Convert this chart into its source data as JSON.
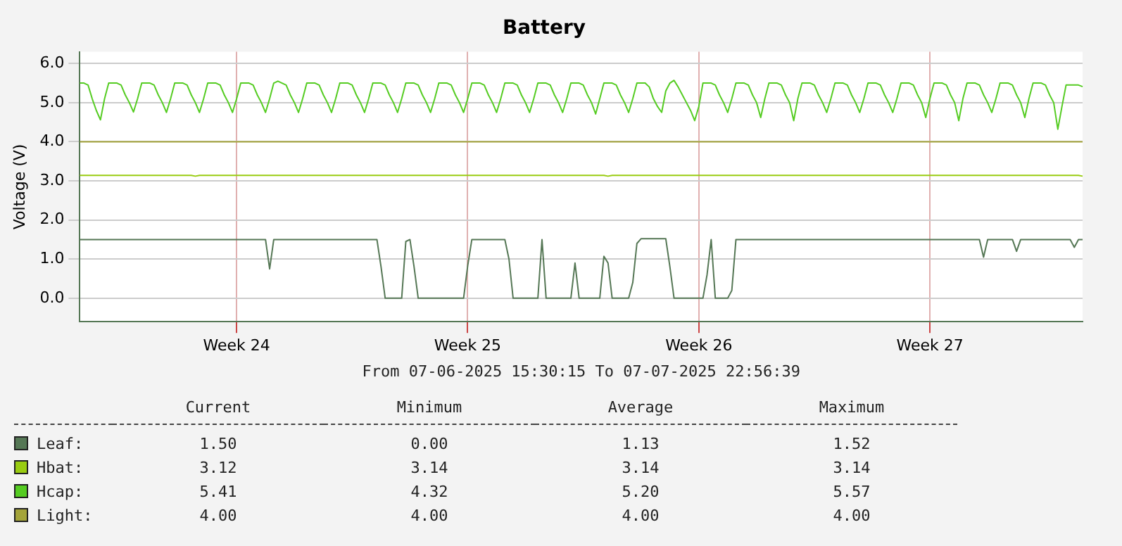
{
  "chart_data": {
    "type": "line",
    "title": "Battery",
    "ylabel": "Voltage (V)",
    "xlabel": "From 07-06-2025 15:30:15 To 07-07-2025 22:56:39",
    "categories": [
      null,
      null,
      null,
      null,
      null,
      null,
      null,
      null,
      null,
      null,
      null,
      null,
      null,
      null,
      null,
      null,
      null,
      null,
      null,
      null,
      null,
      null,
      null,
      null,
      null,
      null,
      null,
      null,
      null,
      null,
      null,
      null,
      null,
      null,
      null,
      null,
      null,
      null,
      "Week 24",
      null,
      null,
      null,
      null,
      null,
      null,
      null,
      null,
      null,
      null,
      null,
      null,
      null,
      null,
      null,
      null,
      null,
      null,
      null,
      null,
      null,
      null,
      null,
      null,
      null,
      null,
      null,
      null,
      null,
      null,
      null,
      null,
      null,
      null,
      null,
      null,
      null,
      null,
      null,
      null,
      null,
      null,
      null,
      null,
      null,
      null,
      null,
      null,
      null,
      null,
      null,
      null,
      null,
      null,
      null,
      "Week 25",
      null,
      null,
      null,
      null,
      null,
      null,
      null,
      null,
      null,
      null,
      null,
      null,
      null,
      null,
      null,
      null,
      null,
      null,
      null,
      null,
      null,
      null,
      null,
      null,
      null,
      null,
      null,
      null,
      null,
      null,
      null,
      null,
      null,
      null,
      null,
      null,
      null,
      null,
      null,
      null,
      null,
      null,
      null,
      null,
      null,
      null,
      null,
      null,
      null,
      null,
      null,
      null,
      null,
      null,
      null,
      "Week 26",
      null,
      null,
      null,
      null,
      null,
      null,
      null,
      null,
      null,
      null,
      null,
      null,
      null,
      null,
      null,
      null,
      null,
      null,
      null,
      null,
      null,
      null,
      null,
      null,
      null,
      null,
      null,
      null,
      null,
      null,
      null,
      null,
      null,
      null,
      null,
      null,
      null,
      null,
      null,
      null,
      null,
      null,
      null,
      null,
      null,
      null,
      null,
      null,
      null,
      null,
      null,
      null,
      null,
      null,
      null,
      "Week 27",
      null,
      null,
      null,
      null,
      null,
      null,
      null,
      null,
      null,
      null,
      null,
      null,
      null,
      null,
      null,
      null,
      null,
      null,
      null,
      null,
      null,
      null,
      null,
      null,
      null,
      null,
      null,
      null,
      null,
      null,
      null,
      null,
      null,
      null,
      null,
      null,
      null
    ],
    "ylim": [
      -0.6,
      6.3
    ],
    "yticks": [
      {
        "value": 0,
        "label": "0.0"
      },
      {
        "value": 1,
        "label": "1.0"
      },
      {
        "value": 2,
        "label": "2.0"
      },
      {
        "value": 3,
        "label": "3.0"
      },
      {
        "value": 4,
        "label": "4.0"
      },
      {
        "value": 5,
        "label": "5.0"
      },
      {
        "value": 6,
        "label": "6.0"
      }
    ],
    "grid": true,
    "legend": "bottom",
    "marker": "none",
    "line_style": "solid",
    "series": [
      {
        "name": "Leaf:",
        "color": "#557755",
        "values": [
          1.5,
          1.5,
          1.5,
          1.5,
          1.5,
          1.5,
          1.5,
          1.5,
          1.5,
          1.5,
          1.5,
          1.5,
          1.5,
          1.5,
          1.5,
          1.5,
          1.5,
          1.5,
          1.5,
          1.5,
          1.5,
          1.5,
          1.5,
          1.5,
          1.5,
          1.5,
          1.5,
          1.5,
          1.5,
          1.5,
          1.5,
          1.5,
          1.5,
          1.5,
          1.5,
          1.5,
          1.5,
          1.5,
          1.5,
          1.5,
          1.5,
          1.5,
          1.5,
          1.5,
          1.5,
          1.5,
          0.75,
          1.5,
          1.5,
          1.5,
          1.5,
          1.5,
          1.5,
          1.5,
          1.5,
          1.5,
          1.5,
          1.5,
          1.5,
          1.5,
          1.5,
          1.5,
          1.5,
          1.5,
          1.5,
          1.5,
          1.5,
          1.5,
          1.5,
          1.5,
          1.5,
          1.5,
          1.5,
          0.8,
          0,
          0,
          0,
          0,
          0,
          1.45,
          1.5,
          0.8,
          0,
          0,
          0,
          0,
          0,
          0,
          0,
          0,
          0,
          0,
          0,
          0,
          0.83,
          1.5,
          1.5,
          1.5,
          1.5,
          1.5,
          1.5,
          1.5,
          1.5,
          1.5,
          1.0,
          0,
          0,
          0,
          0,
          0,
          0,
          0,
          1.5,
          0,
          0,
          0,
          0,
          0,
          0,
          0,
          0.9,
          0,
          0,
          0,
          0,
          0,
          0,
          1.07,
          0.9,
          0,
          0,
          0,
          0,
          0,
          0.4,
          1.4,
          1.52,
          1.52,
          1.52,
          1.52,
          1.52,
          1.52,
          1.52,
          0.8,
          0,
          0,
          0,
          0,
          0,
          0,
          0,
          0,
          0.6,
          1.5,
          0,
          0,
          0,
          0,
          0.2,
          1.5,
          1.5,
          1.5,
          1.5,
          1.5,
          1.5,
          1.5,
          1.5,
          1.5,
          1.5,
          1.5,
          1.5,
          1.5,
          1.5,
          1.5,
          1.5,
          1.5,
          1.5,
          1.5,
          1.5,
          1.5,
          1.5,
          1.5,
          1.5,
          1.5,
          1.5,
          1.5,
          1.5,
          1.5,
          1.5,
          1.5,
          1.5,
          1.5,
          1.5,
          1.5,
          1.5,
          1.5,
          1.5,
          1.5,
          1.5,
          1.5,
          1.5,
          1.5,
          1.5,
          1.5,
          1.5,
          1.5,
          1.5,
          1.5,
          1.5,
          1.5,
          1.5,
          1.5,
          1.5,
          1.5,
          1.5,
          1.5,
          1.5,
          1.5,
          1.5,
          1.05,
          1.5,
          1.5,
          1.5,
          1.5,
          1.5,
          1.5,
          1.5,
          1.2,
          1.5,
          1.5,
          1.5,
          1.5,
          1.5,
          1.5,
          1.5,
          1.5,
          1.5,
          1.5,
          1.5,
          1.5,
          1.5,
          1.3,
          1.5,
          1.5
        ]
      },
      {
        "name": "Hbat:",
        "color": "#99cc11",
        "values": [
          3.14,
          3.14,
          3.14,
          3.14,
          3.14,
          3.14,
          3.14,
          3.14,
          3.14,
          3.14,
          3.14,
          3.14,
          3.14,
          3.14,
          3.14,
          3.14,
          3.14,
          3.14,
          3.14,
          3.14,
          3.14,
          3.14,
          3.14,
          3.14,
          3.14,
          3.14,
          3.14,
          3.14,
          3.12,
          3.14,
          3.14,
          3.14,
          3.14,
          3.14,
          3.14,
          3.14,
          3.14,
          3.14,
          3.14,
          3.14,
          3.14,
          3.14,
          3.14,
          3.14,
          3.14,
          3.14,
          3.14,
          3.14,
          3.14,
          3.14,
          3.14,
          3.14,
          3.14,
          3.14,
          3.14,
          3.14,
          3.14,
          3.14,
          3.14,
          3.14,
          3.14,
          3.14,
          3.14,
          3.14,
          3.14,
          3.14,
          3.14,
          3.14,
          3.14,
          3.14,
          3.14,
          3.14,
          3.14,
          3.14,
          3.14,
          3.14,
          3.14,
          3.14,
          3.14,
          3.14,
          3.14,
          3.14,
          3.14,
          3.14,
          3.14,
          3.14,
          3.14,
          3.14,
          3.14,
          3.14,
          3.14,
          3.14,
          3.14,
          3.14,
          3.14,
          3.14,
          3.14,
          3.14,
          3.14,
          3.14,
          3.14,
          3.14,
          3.14,
          3.14,
          3.14,
          3.14,
          3.14,
          3.14,
          3.14,
          3.14,
          3.14,
          3.14,
          3.14,
          3.14,
          3.14,
          3.14,
          3.14,
          3.14,
          3.14,
          3.14,
          3.14,
          3.14,
          3.14,
          3.14,
          3.14,
          3.14,
          3.14,
          3.14,
          3.12,
          3.14,
          3.14,
          3.14,
          3.14,
          3.14,
          3.14,
          3.14,
          3.14,
          3.14,
          3.14,
          3.14,
          3.14,
          3.14,
          3.14,
          3.14,
          3.14,
          3.14,
          3.14,
          3.14,
          3.14,
          3.14,
          3.14,
          3.14,
          3.14,
          3.14,
          3.14,
          3.14,
          3.14,
          3.14,
          3.14,
          3.14,
          3.14,
          3.14,
          3.14,
          3.14,
          3.14,
          3.14,
          3.14,
          3.14,
          3.14,
          3.14,
          3.14,
          3.14,
          3.14,
          3.14,
          3.14,
          3.14,
          3.14,
          3.14,
          3.14,
          3.14,
          3.14,
          3.14,
          3.14,
          3.14,
          3.14,
          3.14,
          3.14,
          3.14,
          3.14,
          3.14,
          3.14,
          3.14,
          3.14,
          3.14,
          3.14,
          3.14,
          3.14,
          3.14,
          3.14,
          3.14,
          3.14,
          3.14,
          3.14,
          3.14,
          3.14,
          3.14,
          3.14,
          3.14,
          3.14,
          3.14,
          3.14,
          3.14,
          3.14,
          3.14,
          3.14,
          3.14,
          3.14,
          3.14,
          3.14,
          3.14,
          3.14,
          3.14,
          3.14,
          3.14,
          3.14,
          3.14,
          3.14,
          3.14,
          3.14,
          3.14,
          3.14,
          3.14,
          3.14,
          3.14,
          3.14,
          3.14,
          3.14,
          3.14,
          3.14,
          3.14,
          3.14,
          3.14,
          3.14,
          3.12
        ]
      },
      {
        "name": "Hcap:",
        "color": "#55cc22",
        "values": [
          5.5,
          5.5,
          5.45,
          5.1,
          4.8,
          4.56,
          5.1,
          5.5,
          5.5,
          5.5,
          5.45,
          5.2,
          5.0,
          4.76,
          5.1,
          5.5,
          5.5,
          5.5,
          5.45,
          5.2,
          5.0,
          4.75,
          5.1,
          5.5,
          5.5,
          5.5,
          5.45,
          5.2,
          5.0,
          4.75,
          5.1,
          5.5,
          5.5,
          5.5,
          5.45,
          5.2,
          5.0,
          4.75,
          5.1,
          5.5,
          5.5,
          5.5,
          5.45,
          5.2,
          5.0,
          4.75,
          5.1,
          5.5,
          5.55,
          5.5,
          5.45,
          5.2,
          5.0,
          4.75,
          5.1,
          5.5,
          5.5,
          5.5,
          5.45,
          5.2,
          5.0,
          4.75,
          5.1,
          5.5,
          5.5,
          5.5,
          5.45,
          5.2,
          5.0,
          4.75,
          5.1,
          5.5,
          5.5,
          5.5,
          5.45,
          5.2,
          5.0,
          4.75,
          5.1,
          5.5,
          5.5,
          5.5,
          5.45,
          5.2,
          5.0,
          4.75,
          5.1,
          5.5,
          5.5,
          5.5,
          5.45,
          5.2,
          5.0,
          4.75,
          5.1,
          5.5,
          5.5,
          5.5,
          5.45,
          5.2,
          5.0,
          4.75,
          5.1,
          5.5,
          5.5,
          5.5,
          5.45,
          5.2,
          5.0,
          4.75,
          5.1,
          5.5,
          5.5,
          5.5,
          5.45,
          5.2,
          5.0,
          4.75,
          5.1,
          5.5,
          5.5,
          5.5,
          5.45,
          5.2,
          5.0,
          4.71,
          5.1,
          5.5,
          5.5,
          5.5,
          5.45,
          5.2,
          5.0,
          4.75,
          5.1,
          5.5,
          5.5,
          5.5,
          5.4,
          5.1,
          4.9,
          4.75,
          5.3,
          5.5,
          5.57,
          5.4,
          5.2,
          5.0,
          4.8,
          4.54,
          4.9,
          5.5,
          5.5,
          5.5,
          5.45,
          5.2,
          5.0,
          4.75,
          5.1,
          5.5,
          5.5,
          5.5,
          5.45,
          5.2,
          5.0,
          4.62,
          5.1,
          5.5,
          5.5,
          5.5,
          5.45,
          5.2,
          5.0,
          4.54,
          5.1,
          5.5,
          5.5,
          5.5,
          5.45,
          5.2,
          5.0,
          4.75,
          5.1,
          5.5,
          5.5,
          5.5,
          5.45,
          5.2,
          5.0,
          4.75,
          5.1,
          5.5,
          5.5,
          5.5,
          5.45,
          5.2,
          5.0,
          4.75,
          5.1,
          5.5,
          5.5,
          5.5,
          5.45,
          5.2,
          5.0,
          4.62,
          5.1,
          5.5,
          5.5,
          5.5,
          5.45,
          5.2,
          5.0,
          4.54,
          5.1,
          5.5,
          5.5,
          5.5,
          5.45,
          5.2,
          5.0,
          4.75,
          5.1,
          5.5,
          5.5,
          5.5,
          5.45,
          5.2,
          5.0,
          4.62,
          5.1,
          5.5,
          5.5,
          5.5,
          5.45,
          5.2,
          5.0,
          4.32,
          4.9,
          5.45,
          5.45,
          5.45,
          5.45,
          5.41
        ]
      },
      {
        "name": "Light:",
        "color": "#a4a43a",
        "values": [
          4.0,
          4.0,
          4.0,
          4.0,
          4.0,
          4.0,
          4.0,
          4.0,
          4.0,
          4.0,
          4.0,
          4.0,
          4.0,
          4.0,
          4.0,
          4.0,
          4.0,
          4.0,
          4.0,
          4.0,
          4.0,
          4.0,
          4.0,
          4.0,
          4.0,
          4.0,
          4.0,
          4.0,
          4.0,
          4.0,
          4.0,
          4.0,
          4.0,
          4.0,
          4.0,
          4.0,
          4.0,
          4.0,
          4.0,
          4.0,
          4.0,
          4.0,
          4.0,
          4.0,
          4.0,
          4.0,
          4.0,
          4.0,
          4.0,
          4.0,
          4.0,
          4.0,
          4.0,
          4.0,
          4.0,
          4.0,
          4.0,
          4.0,
          4.0,
          4.0,
          4.0,
          4.0,
          4.0,
          4.0,
          4.0,
          4.0,
          4.0,
          4.0,
          4.0,
          4.0,
          4.0,
          4.0,
          4.0,
          4.0,
          4.0,
          4.0,
          4.0,
          4.0,
          4.0,
          4.0,
          4.0,
          4.0,
          4.0,
          4.0,
          4.0,
          4.0,
          4.0,
          4.0,
          4.0,
          4.0,
          4.0,
          4.0,
          4.0,
          4.0,
          4.0,
          4.0,
          4.0,
          4.0,
          4.0,
          4.0,
          4.0,
          4.0,
          4.0,
          4.0,
          4.0,
          4.0,
          4.0,
          4.0,
          4.0,
          4.0,
          4.0,
          4.0,
          4.0,
          4.0,
          4.0,
          4.0,
          4.0,
          4.0,
          4.0,
          4.0,
          4.0,
          4.0,
          4.0,
          4.0,
          4.0,
          4.0,
          4.0,
          4.0,
          4.0,
          4.0,
          4.0,
          4.0,
          4.0,
          4.0,
          4.0,
          4.0,
          4.0,
          4.0,
          4.0,
          4.0,
          4.0,
          4.0,
          4.0,
          4.0,
          4.0,
          4.0,
          4.0,
          4.0,
          4.0,
          4.0,
          4.0,
          4.0,
          4.0,
          4.0,
          4.0,
          4.0,
          4.0,
          4.0,
          4.0,
          4.0,
          4.0,
          4.0,
          4.0,
          4.0,
          4.0,
          4.0,
          4.0,
          4.0,
          4.0,
          4.0,
          4.0,
          4.0,
          4.0,
          4.0,
          4.0,
          4.0,
          4.0,
          4.0,
          4.0,
          4.0,
          4.0,
          4.0,
          4.0,
          4.0,
          4.0,
          4.0,
          4.0,
          4.0,
          4.0,
          4.0,
          4.0,
          4.0,
          4.0,
          4.0,
          4.0,
          4.0,
          4.0,
          4.0,
          4.0,
          4.0,
          4.0,
          4.0,
          4.0,
          4.0,
          4.0,
          4.0,
          4.0,
          4.0,
          4.0,
          4.0,
          4.0,
          4.0,
          4.0,
          4.0,
          4.0,
          4.0,
          4.0,
          4.0,
          4.0,
          4.0,
          4.0,
          4.0,
          4.0,
          4.0,
          4.0,
          4.0,
          4.0,
          4.0,
          4.0,
          4.0,
          4.0,
          4.0,
          4.0,
          4.0,
          4.0,
          4.0,
          4.0,
          4.0,
          4.0,
          4.0,
          4.0,
          4.0,
          4.0,
          4.0
        ]
      }
    ],
    "annotations": [
      "Current",
      "Minimum",
      "Average",
      "Maximum",
      "1.50",
      "0.00",
      "1.13",
      "1.52",
      "3.12",
      "3.14",
      "3.14",
      "3.14",
      "5.41",
      "4.32",
      "5.20",
      "5.57",
      "4.00",
      "4.00",
      "4.00",
      "4.00"
    ]
  }
}
